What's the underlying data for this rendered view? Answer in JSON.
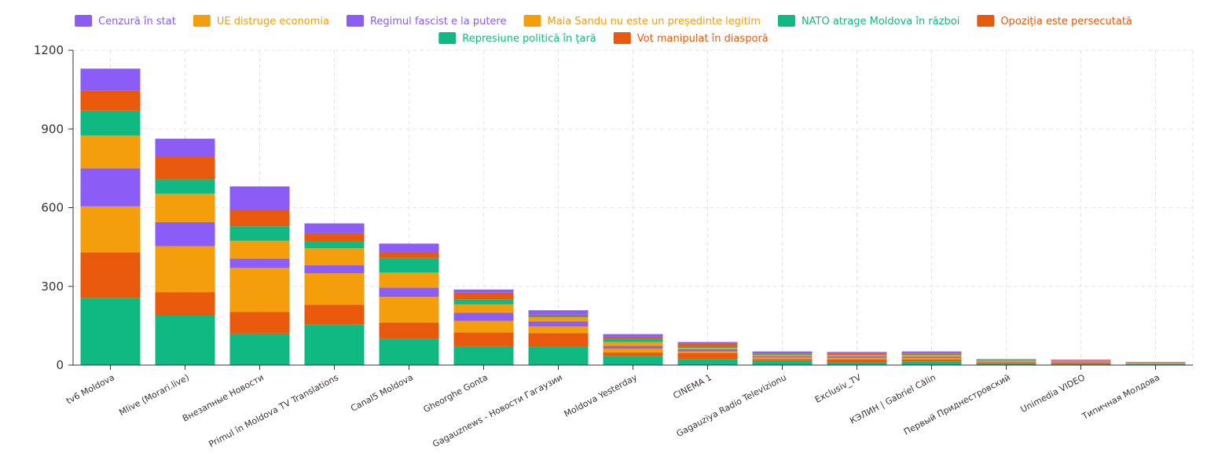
{
  "chart_data": {
    "type": "bar",
    "stacked": true,
    "title": "",
    "xlabel": "",
    "ylabel": "",
    "ylim": [
      0,
      1200
    ],
    "yticks": [
      0,
      300,
      600,
      900,
      1200
    ],
    "grid": true,
    "legend_position": "top",
    "categories": [
      "tv6 Moldova",
      "Mlive (Morari.live)",
      "Внезапные Новости",
      "Primul în Moldova TV Translations",
      "Canal5 Moldova",
      "Gheorghe Gonta",
      "Gagauznews - Новости Гагаузии",
      "Moldova Yesterday",
      "CINEMA 1",
      "Gagauziya Radio Televizionu",
      "Exclusiv_TV",
      "КЭЛИН | Gabriel Călin",
      "Первый Приднестровский",
      "Unimedia VIDEO",
      "Типичная Молдова"
    ],
    "series": [
      {
        "name": "Represiune politică în țară",
        "color": "#10b981",
        "values": [
          255,
          190,
          120,
          155,
          100,
          72,
          70,
          35,
          22,
          16,
          12,
          14,
          7,
          5,
          3
        ]
      },
      {
        "name": "Vot manipulat în diasporă",
        "color": "#e8590c",
        "values": [
          175,
          88,
          83,
          75,
          62,
          52,
          52,
          13,
          24,
          7,
          10,
          7,
          4,
          5,
          2
        ]
      },
      {
        "name": "Maia Sandu nu este un președinte legitim",
        "color": "#f59e0b",
        "values": [
          175,
          175,
          168,
          120,
          98,
          45,
          25,
          15,
          6,
          6,
          6,
          6,
          3,
          3,
          2
        ]
      },
      {
        "name": "Regimul fascist e la putere",
        "color": "#8b5cf6",
        "values": [
          145,
          92,
          35,
          30,
          35,
          30,
          20,
          10,
          8,
          5,
          5,
          5,
          2,
          2,
          1
        ]
      },
      {
        "name": "UE distruge economia",
        "color": "#f59e0b",
        "values": [
          125,
          108,
          68,
          65,
          58,
          32,
          15,
          15,
          6,
          5,
          5,
          6,
          2,
          2,
          1
        ]
      },
      {
        "name": "NATO atrage Moldova în război",
        "color": "#10b981",
        "values": [
          95,
          55,
          55,
          25,
          55,
          18,
          5,
          12,
          6,
          5,
          4,
          5,
          2,
          1,
          1
        ]
      },
      {
        "name": "Opoziția este persecutată",
        "color": "#e8590c",
        "values": [
          75,
          88,
          62,
          33,
          23,
          27,
          5,
          8,
          10,
          4,
          5,
          4,
          2,
          2,
          2
        ]
      },
      {
        "name": "Cenzură în stat",
        "color": "#8b5cf6",
        "values": [
          85,
          67,
          90,
          37,
          32,
          12,
          17,
          10,
          6,
          4,
          3,
          5,
          1,
          1,
          0
        ]
      }
    ],
    "legend": [
      {
        "label": "Cenzură în stat",
        "color": "#8b5cf6"
      },
      {
        "label": "UE distruge economia",
        "color": "#f59e0b"
      },
      {
        "label": "Regimul fascist e la putere",
        "color": "#8b5cf6"
      },
      {
        "label": "Maia Sandu nu este un președinte legitim",
        "color": "#f59e0b"
      },
      {
        "label": "NATO atrage Moldova în război",
        "color": "#10b981"
      },
      {
        "label": "Opoziția este persecutată",
        "color": "#e8590c"
      },
      {
        "label": "Represiune politică în țară",
        "color": "#10b981"
      },
      {
        "label": "Vot manipulat în diasporă",
        "color": "#e8590c"
      }
    ]
  }
}
